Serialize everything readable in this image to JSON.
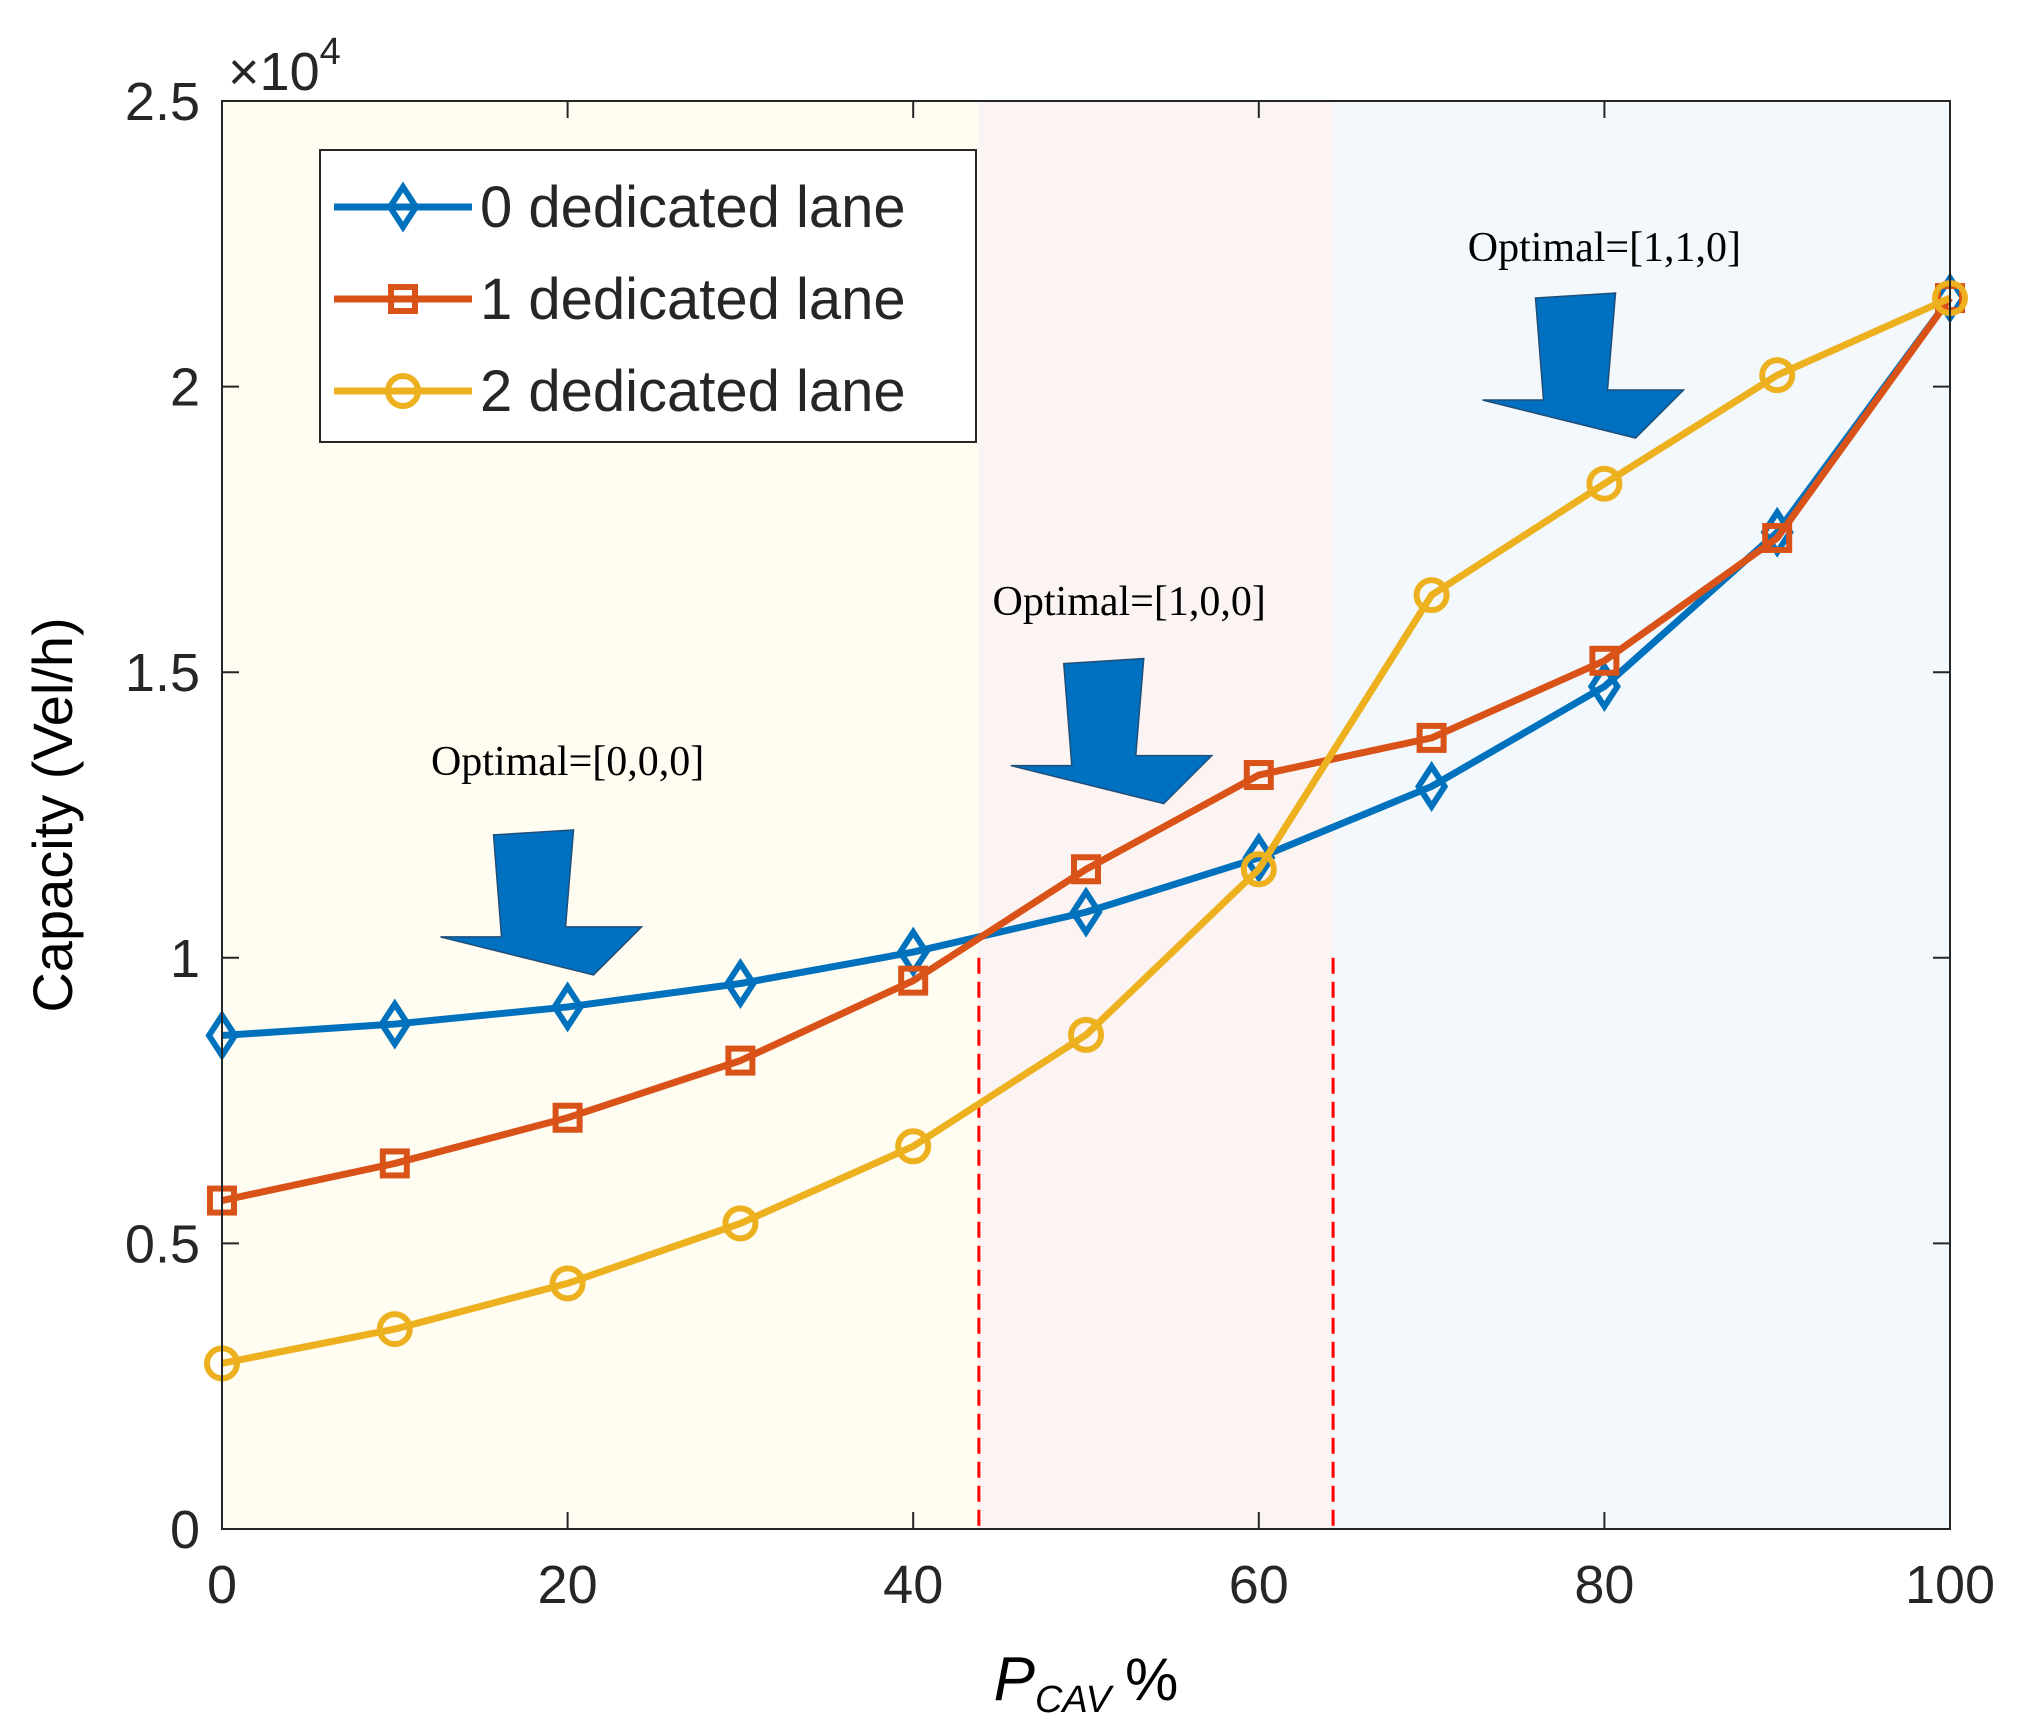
{
  "chart_data": {
    "type": "line",
    "title": "",
    "xlabel_main": "P",
    "xlabel_sub": "CAV",
    "xlabel_suffix": "%",
    "ylabel": "Capacity (Vel/h)",
    "y_multiplier_base": "×10",
    "y_multiplier_exp": "4",
    "xlim": [
      0,
      100
    ],
    "ylim": [
      0,
      2.5
    ],
    "xticks": [
      0,
      20,
      40,
      60,
      80,
      100
    ],
    "yticks": [
      0,
      0.5,
      1,
      1.5,
      2,
      2.5
    ],
    "ytick_labels": [
      "0",
      "0.5",
      "1",
      "1.5",
      "2",
      "2.5"
    ],
    "x": [
      0,
      10,
      20,
      30,
      40,
      50,
      60,
      70,
      80,
      90,
      100
    ],
    "series": [
      {
        "name": "0 dedicated lane",
        "color": "#0072BD",
        "marker": "diamond",
        "values": [
          0.864,
          0.884,
          0.914,
          0.955,
          1.01,
          1.08,
          1.175,
          1.3,
          1.475,
          1.745,
          2.155
        ]
      },
      {
        "name": "1 dedicated lane",
        "color": "#D95319",
        "marker": "square",
        "values": [
          0.575,
          0.64,
          0.72,
          0.82,
          0.96,
          1.155,
          1.32,
          1.385,
          1.52,
          1.735,
          2.155
        ]
      },
      {
        "name": "2 dedicated lane",
        "color": "#EDB120",
        "marker": "circle",
        "values": [
          0.29,
          0.35,
          0.43,
          0.535,
          0.67,
          0.865,
          1.155,
          1.635,
          1.83,
          2.02,
          2.155
        ]
      }
    ],
    "regions": [
      {
        "from": 0,
        "to": 43.8,
        "color": "#fffcf2"
      },
      {
        "from": 43.8,
        "to": 64.3,
        "color": "#fcf4f2"
      },
      {
        "from": 64.3,
        "to": 100,
        "color": "#f2f8fb"
      }
    ],
    "vlines": [
      43.8,
      64.3
    ],
    "vline_color": "#ff0000",
    "annotations": [
      {
        "text": "Optimal=[0,0,0]",
        "x": 20,
        "y": 1.32
      },
      {
        "text": "Optimal=[1,0,0]",
        "x": 52.5,
        "y": 1.6
      },
      {
        "text": "Optimal=[1,1,0]",
        "x": 80,
        "y": 2.22
      }
    ],
    "arrow_color": "#0070C0",
    "legend_position": "top-left"
  }
}
